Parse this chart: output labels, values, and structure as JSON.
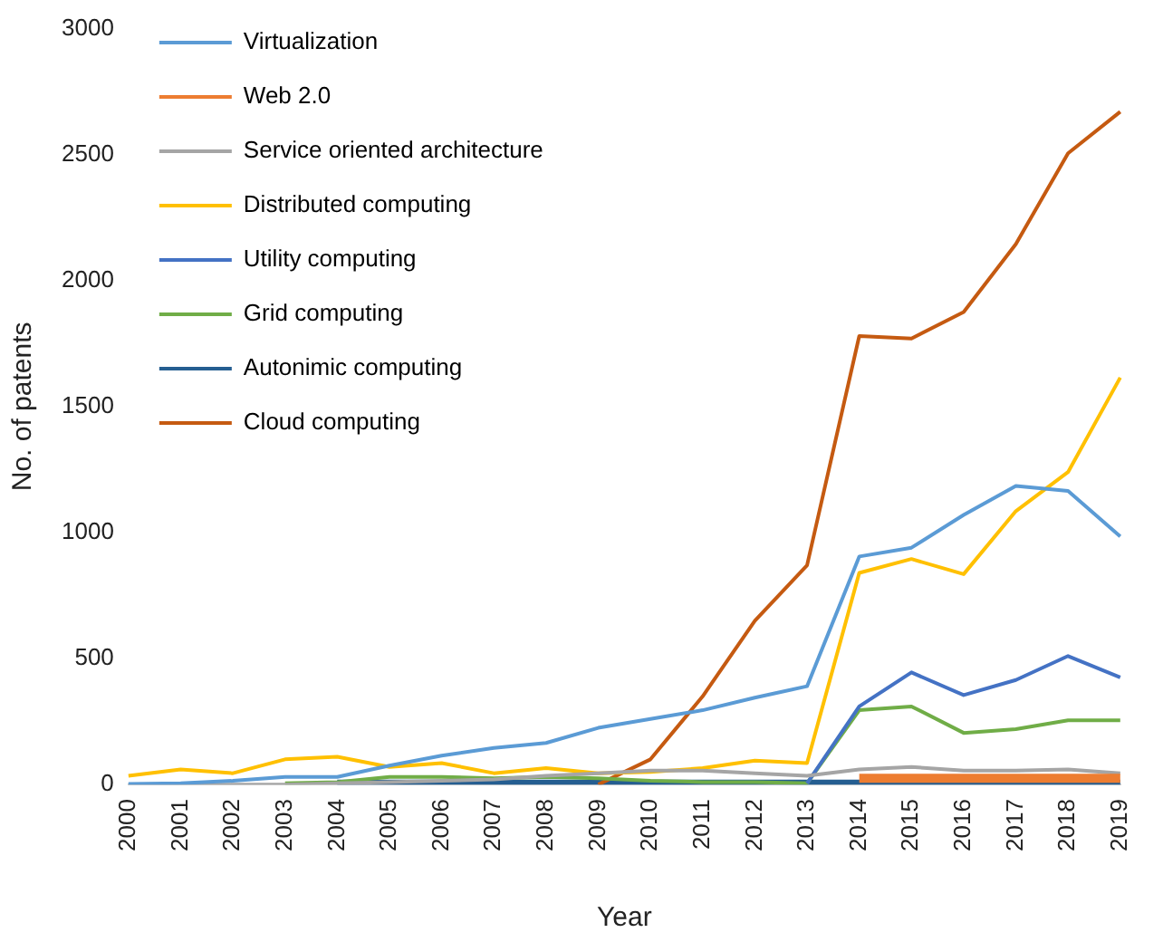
{
  "chart_data": {
    "type": "line",
    "xlabel": "Year",
    "ylabel": "No. of patents",
    "categories": [
      "2000",
      "2001",
      "2002",
      "2003",
      "2004",
      "2005",
      "2006",
      "2007",
      "2008",
      "2009",
      "2010",
      "2011",
      "2012",
      "2013",
      "2014",
      "2015",
      "2016",
      "2017",
      "2018",
      "2019"
    ],
    "ylim": [
      0,
      3000
    ],
    "yticks": [
      0,
      500,
      1000,
      1500,
      2000,
      2500,
      3000
    ],
    "grid": false,
    "legend": "top left",
    "marker": "none",
    "line_style": "solid",
    "series": [
      {
        "name": "Virtualization",
        "color": "#5b9bd5",
        "values": [
          2,
          5,
          15,
          30,
          30,
          75,
          115,
          145,
          165,
          225,
          260,
          295,
          345,
          390,
          905,
          940,
          1070,
          1185,
          1165,
          985
        ]
      },
      {
        "name": "Web 2.0",
        "color": "#ed7d31",
        "values": [
          null,
          null,
          null,
          null,
          null,
          null,
          null,
          null,
          null,
          null,
          null,
          null,
          null,
          null,
          25,
          25,
          25,
          25,
          25,
          25
        ]
      },
      {
        "name": "Service oriented architecture",
        "color": "#a5a5a5",
        "values": [
          0,
          0,
          0,
          0,
          5,
          10,
          15,
          20,
          35,
          45,
          55,
          55,
          45,
          35,
          60,
          70,
          55,
          55,
          60,
          45
        ]
      },
      {
        "name": "Distributed computing",
        "color": "#ffc000",
        "values": [
          35,
          60,
          45,
          100,
          110,
          70,
          85,
          45,
          65,
          45,
          50,
          65,
          95,
          85,
          840,
          895,
          835,
          1085,
          1240,
          1615
        ]
      },
      {
        "name": "Utility computing",
        "color": "#4472c4",
        "values": [
          null,
          null,
          null,
          null,
          null,
          null,
          null,
          null,
          null,
          null,
          null,
          null,
          null,
          5,
          310,
          445,
          355,
          415,
          510,
          425
        ]
      },
      {
        "name": "Grid computing",
        "color": "#70ad47",
        "values": [
          null,
          null,
          null,
          5,
          10,
          30,
          30,
          25,
          30,
          25,
          15,
          10,
          10,
          5,
          295,
          310,
          205,
          220,
          255,
          255
        ]
      },
      {
        "name": "Autonimic computing",
        "color": "#255e91",
        "values": [
          null,
          null,
          null,
          null,
          5,
          5,
          5,
          5,
          5,
          5,
          5,
          5,
          5,
          5,
          5,
          5,
          5,
          5,
          5,
          5
        ]
      },
      {
        "name": "Cloud computing",
        "color": "#c55a11",
        "values": [
          null,
          null,
          null,
          null,
          null,
          null,
          null,
          null,
          null,
          0,
          100,
          350,
          650,
          870,
          1780,
          1770,
          1875,
          2145,
          2505,
          2670
        ]
      }
    ]
  }
}
